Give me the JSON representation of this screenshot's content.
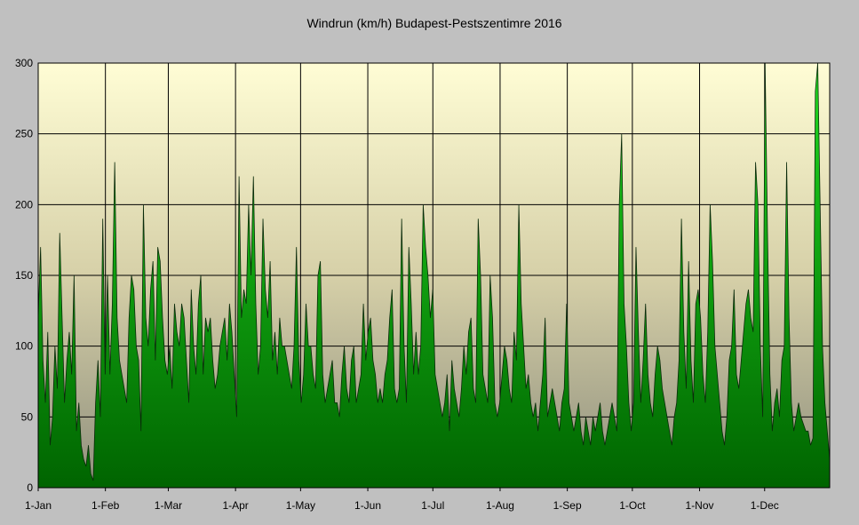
{
  "chart_data": {
    "type": "area",
    "title": "Windrun (km/h) Budapest-Pestszentimre 2016",
    "xlabel": "",
    "ylabel": "",
    "ylim": [
      0,
      300
    ],
    "y_ticks": [
      0,
      50,
      100,
      150,
      200,
      250,
      300
    ],
    "x_ticks": [
      {
        "label": "1-Jan",
        "date": "2016-01-01"
      },
      {
        "label": "1-Feb",
        "date": "2016-02-01"
      },
      {
        "label": "1-Mar",
        "date": "2016-03-01"
      },
      {
        "label": "1-Apr",
        "date": "2016-04-01"
      },
      {
        "label": "1-May",
        "date": "2016-05-01"
      },
      {
        "label": "1-Jun",
        "date": "2016-06-01"
      },
      {
        "label": "1-Jul",
        "date": "2016-07-01"
      },
      {
        "label": "1-Aug",
        "date": "2016-08-01"
      },
      {
        "label": "1-Sep",
        "date": "2016-09-01"
      },
      {
        "label": "1-Oct",
        "date": "2016-10-01"
      },
      {
        "label": "1-Nov",
        "date": "2016-11-01"
      },
      {
        "label": "1-Dec",
        "date": "2016-12-01"
      }
    ],
    "x_start": "2016-01-01",
    "x_end": "2016-12-31",
    "grid": true,
    "series": [
      {
        "values": [
          120,
          170,
          90,
          60,
          110,
          30,
          50,
          100,
          70,
          180,
          120,
          60,
          90,
          110,
          80,
          150,
          40,
          60,
          30,
          20,
          15,
          30,
          10,
          5,
          60,
          90,
          50,
          190,
          80,
          150,
          80,
          130,
          230,
          120,
          90,
          80,
          70,
          60,
          120,
          150,
          140,
          100,
          90,
          40,
          200,
          120,
          100,
          140,
          160,
          90,
          170,
          160,
          120,
          90,
          80,
          100,
          70,
          130,
          110,
          100,
          130,
          120,
          90,
          60,
          140,
          100,
          80,
          130,
          150,
          80,
          120,
          110,
          120,
          90,
          70,
          80,
          100,
          110,
          120,
          90,
          130,
          110,
          80,
          50,
          220,
          120,
          140,
          130,
          200,
          150,
          220,
          130,
          80,
          100,
          190,
          140,
          120,
          160,
          90,
          110,
          80,
          120,
          100,
          100,
          90,
          80,
          70,
          100,
          170,
          90,
          60,
          80,
          130,
          100,
          100,
          80,
          70,
          150,
          160,
          80,
          60,
          70,
          80,
          90,
          60,
          60,
          50,
          80,
          100,
          70,
          60,
          90,
          100,
          60,
          70,
          80,
          130,
          90,
          110,
          120,
          90,
          80,
          60,
          70,
          60,
          80,
          90,
          120,
          140,
          70,
          60,
          70,
          190,
          100,
          60,
          170,
          130,
          80,
          110,
          80,
          100,
          200,
          170,
          150,
          120,
          140,
          80,
          70,
          60,
          50,
          60,
          80,
          40,
          90,
          70,
          60,
          50,
          70,
          100,
          80,
          110,
          120,
          70,
          60,
          190,
          150,
          80,
          70,
          60,
          150,
          120,
          60,
          50,
          60,
          80,
          100,
          90,
          70,
          60,
          110,
          90,
          200,
          130,
          100,
          70,
          80,
          60,
          50,
          60,
          40,
          60,
          80,
          120,
          50,
          60,
          70,
          60,
          50,
          40,
          60,
          70,
          130,
          60,
          50,
          40,
          50,
          60,
          40,
          30,
          50,
          40,
          30,
          50,
          40,
          50,
          60,
          40,
          30,
          40,
          50,
          60,
          50,
          40,
          200,
          250,
          130,
          100,
          60,
          40,
          60,
          170,
          110,
          60,
          90,
          130,
          80,
          60,
          50,
          80,
          100,
          90,
          70,
          60,
          50,
          40,
          30,
          50,
          60,
          90,
          190,
          110,
          70,
          160,
          90,
          60,
          130,
          140,
          120,
          80,
          60,
          110,
          200,
          160,
          100,
          80,
          60,
          40,
          30,
          50,
          90,
          100,
          140,
          80,
          70,
          90,
          110,
          130,
          140,
          120,
          110,
          230,
          200,
          100,
          50,
          300,
          180,
          80,
          40,
          60,
          70,
          50,
          90,
          100,
          230,
          120,
          60,
          40,
          50,
          60,
          50,
          45,
          40,
          40,
          30,
          35,
          280,
          300,
          200,
          100,
          60,
          40,
          20
        ]
      }
    ]
  }
}
